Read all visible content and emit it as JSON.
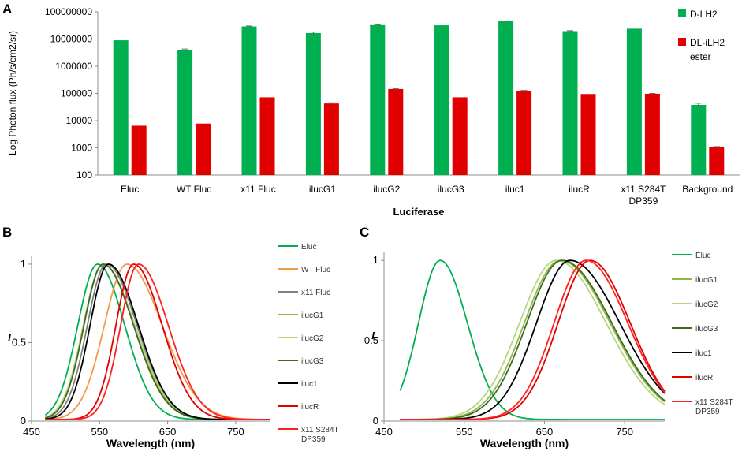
{
  "chart_data": [
    {
      "panel": "A",
      "type": "bar",
      "yscale": "log",
      "ylabel": "Log Photon flux (Ph/s/cm2/sr)",
      "xlabel": "Luciferase",
      "ylim": [
        100,
        100000000
      ],
      "yticks": [
        "100000000",
        "10000000",
        "1000000",
        "100000",
        "10000",
        "1000",
        "100"
      ],
      "categories": [
        "Eluc",
        "WT Fluc",
        "x11 Fluc",
        "ilucG1",
        "ilucG2",
        "ilucG3",
        "iluc1",
        "ilucR",
        "x11 S284T DP359",
        "Background"
      ],
      "category_lines": [
        [
          "Eluc"
        ],
        [
          "WT Fluc"
        ],
        [
          "x11 Fluc"
        ],
        [
          "ilucG1"
        ],
        [
          "ilucG2"
        ],
        [
          "ilucG3"
        ],
        [
          "iluc1"
        ],
        [
          "ilucR"
        ],
        [
          "x11 S284T",
          "DP359"
        ],
        [
          "Background"
        ]
      ],
      "series": [
        {
          "name": "D-LH2",
          "color": "#00b050",
          "values": [
            9000000,
            4000000,
            29000000,
            16500000,
            32500000,
            32000000,
            46000000,
            19500000,
            24000000,
            38000
          ],
          "errors": [
            0,
            300000,
            1200000,
            1500000,
            1000000,
            0,
            0,
            800000,
            0,
            6000
          ]
        },
        {
          "name": "DL-iLH2 ester",
          "color": "#e00000",
          "values": [
            6500,
            7800,
            72000,
            43000,
            145000,
            72000,
            125000,
            95000,
            97000,
            1050
          ],
          "errors": [
            0,
            0,
            0,
            2500,
            6000,
            0,
            4000,
            0,
            3000,
            60
          ]
        }
      ],
      "legend": [
        {
          "lines": [
            "D-LH2"
          ]
        },
        {
          "lines": [
            "DL-iLH2",
            "ester"
          ]
        }
      ]
    },
    {
      "panel": "B",
      "type": "line",
      "ylabel": "I",
      "xlabel": "Wavelength (nm)",
      "xlim": [
        450,
        800
      ],
      "ylim": [
        0,
        1.05
      ],
      "xticks": [
        "450",
        "550",
        "650",
        "750"
      ],
      "yticks": [
        "0",
        "0.5",
        "1"
      ],
      "series": [
        {
          "name": "Eluc",
          "color": "#00b050",
          "peak": 547,
          "sl": 29,
          "sr": 40
        },
        {
          "name": "WT Fluc",
          "color": "#f29a4a",
          "peak": 590,
          "sl": 33,
          "sr": 52
        },
        {
          "name": "x11 Fluc",
          "color": "#808080",
          "peak": 560,
          "sl": 28,
          "sr": 45
        },
        {
          "name": "ilucG1",
          "color": "#8cb84a",
          "peak": 555,
          "sl": 28,
          "sr": 46
        },
        {
          "name": "ilucG2",
          "color": "#b6d680",
          "peak": 555,
          "sl": 29,
          "sr": 47
        },
        {
          "name": "ilucG3",
          "color": "#3f6b1e",
          "peak": 555,
          "sl": 28,
          "sr": 45
        },
        {
          "name": "iluc1",
          "color": "#000000",
          "peak": 563,
          "sl": 27,
          "sr": 44
        },
        {
          "name": "ilucR",
          "color": "#e00000",
          "peak": 600,
          "sl": 26,
          "sr": 42
        },
        {
          "name": "x11 S284T DP359",
          "color": "#ff2020",
          "peak": 607,
          "sl": 26,
          "sr": 44
        }
      ],
      "legend": [
        {
          "lines": [
            "Eluc"
          ]
        },
        {
          "lines": [
            "WT Fluc"
          ]
        },
        {
          "lines": [
            "x11 Fluc"
          ]
        },
        {
          "lines": [
            "ilucG1"
          ]
        },
        {
          "lines": [
            "ilucG2"
          ]
        },
        {
          "lines": [
            "ilucG3"
          ]
        },
        {
          "lines": [
            "iluc1"
          ]
        },
        {
          "lines": [
            "ilucR"
          ]
        },
        {
          "lines": [
            "x11 S284T",
            "DP359"
          ]
        }
      ]
    },
    {
      "panel": "C",
      "type": "line",
      "ylabel": "I",
      "xlabel": "Wavelength (nm)",
      "xlim": [
        450,
        800
      ],
      "ylim": [
        0,
        1.05
      ],
      "xticks": [
        "450",
        "550",
        "650",
        "750"
      ],
      "yticks": [
        "0",
        "0.5",
        "1"
      ],
      "series": [
        {
          "name": "Eluc",
          "color": "#00b050",
          "peak": 520,
          "sl": 27,
          "sr": 34
        },
        {
          "name": "ilucG1",
          "color": "#8cb84a",
          "peak": 670,
          "sl": 45,
          "sr": 62
        },
        {
          "name": "ilucG2",
          "color": "#b6d680",
          "peak": 665,
          "sl": 46,
          "sr": 62
        },
        {
          "name": "ilucG3",
          "color": "#3f6b1e",
          "peak": 672,
          "sl": 44,
          "sr": 62
        },
        {
          "name": "iluc1",
          "color": "#000000",
          "peak": 682,
          "sl": 42,
          "sr": 62
        },
        {
          "name": "ilucR",
          "color": "#e00000",
          "peak": 707,
          "sl": 40,
          "sr": 50
        },
        {
          "name": "x11 S284T DP359",
          "color": "#ff2020",
          "peak": 702,
          "sl": 40,
          "sr": 52
        }
      ],
      "legend": [
        {
          "lines": [
            "Eluc"
          ]
        },
        {
          "lines": [
            "ilucG1"
          ]
        },
        {
          "lines": [
            "ilucG2"
          ]
        },
        {
          "lines": [
            "ilucG3"
          ]
        },
        {
          "lines": [
            "iluc1"
          ]
        },
        {
          "lines": [
            "ilucR"
          ]
        },
        {
          "lines": [
            "x11 S284T",
            "DP359"
          ]
        }
      ]
    }
  ]
}
